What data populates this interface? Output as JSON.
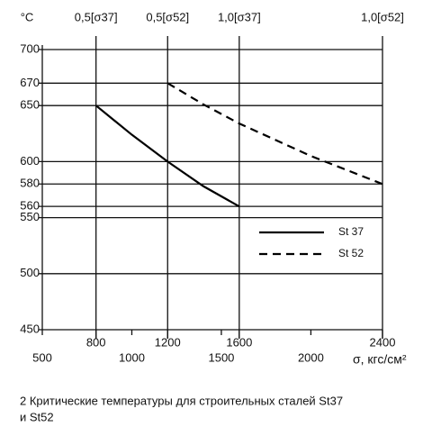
{
  "chart_data": {
    "type": "line",
    "y_unit_label": "°C",
    "xlabel": "σ, кгс/см²",
    "caption": [
      "2 Критические температуры для строительных сталей St37",
      "и St52"
    ],
    "xlim": [
      500,
      2400
    ],
    "ylim": [
      450,
      700
    ],
    "xticks": [
      800,
      1200,
      1600,
      2400
    ],
    "xticks2": [
      500,
      1000,
      1500,
      2000
    ],
    "yticks": [
      450,
      500,
      550,
      560,
      580,
      600,
      650,
      670,
      700
    ],
    "top_ticks": [
      {
        "value": 800,
        "label": "0,5[σ37]"
      },
      {
        "value": 1200,
        "label": "0,5[σ52]"
      },
      {
        "value": 1600,
        "label": "1,0[σ37]"
      },
      {
        "value": 2400,
        "label": "1,0[σ52]"
      }
    ],
    "series": [
      {
        "name": "St 37",
        "color": "#000000",
        "dash": false,
        "x": [
          800,
          1000,
          1200,
          1400,
          1600
        ],
        "values": [
          650,
          624,
          600,
          578,
          560
        ]
      },
      {
        "name": "St 52",
        "color": "#000000",
        "dash": true,
        "x": [
          1200,
          1400,
          1600,
          2000,
          2400
        ],
        "values": [
          670,
          651,
          634,
          605,
          580
        ]
      }
    ],
    "grid": true
  }
}
